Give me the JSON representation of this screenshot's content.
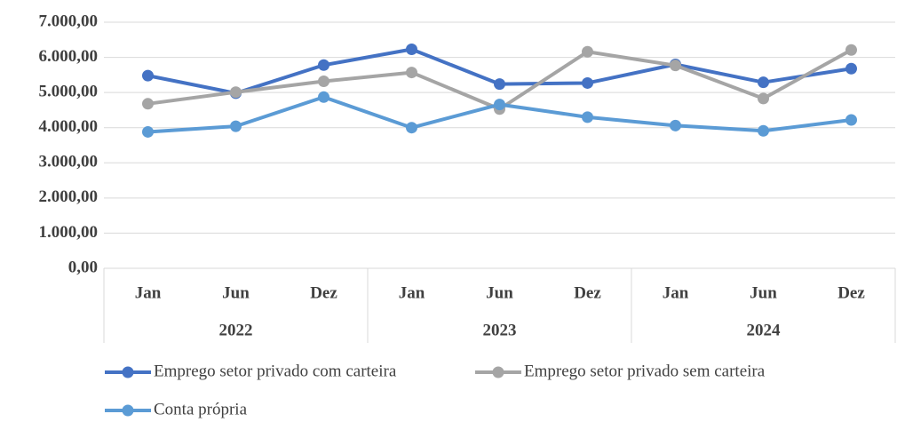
{
  "chart_data": {
    "type": "line",
    "categories": [
      "Jan",
      "Jun",
      "Dez",
      "Jan",
      "Jun",
      "Dez",
      "Jan",
      "Jun",
      "Dez"
    ],
    "category_groups": [
      "2022",
      "2023",
      "2024"
    ],
    "series": [
      {
        "name": "Emprego setor privado com carteira",
        "color": "#4472c4",
        "values": [
          5480,
          4980,
          5780,
          6230,
          5240,
          5270,
          5800,
          5290,
          5680
        ]
      },
      {
        "name": "Emprego setor privado sem carteira",
        "color": "#a5a5a5",
        "values": [
          4680,
          5010,
          5320,
          5570,
          4530,
          6160,
          5770,
          4830,
          6210
        ]
      },
      {
        "name": "Conta própria",
        "color": "#5b9bd5",
        "values": [
          3880,
          4040,
          4870,
          4000,
          4660,
          4300,
          4060,
          3910,
          4220
        ]
      }
    ],
    "ylim": [
      0,
      7000
    ],
    "yticks": [
      {
        "value": 0,
        "label": "0,00"
      },
      {
        "value": 1000,
        "label": "1.000,00"
      },
      {
        "value": 2000,
        "label": "2.000,00"
      },
      {
        "value": 3000,
        "label": "3.000,00"
      },
      {
        "value": 4000,
        "label": "4.000,00"
      },
      {
        "value": 5000,
        "label": "5.000,00"
      },
      {
        "value": 6000,
        "label": "6.000,00"
      },
      {
        "value": 7000,
        "label": "7.000,00"
      }
    ],
    "grid": true
  }
}
